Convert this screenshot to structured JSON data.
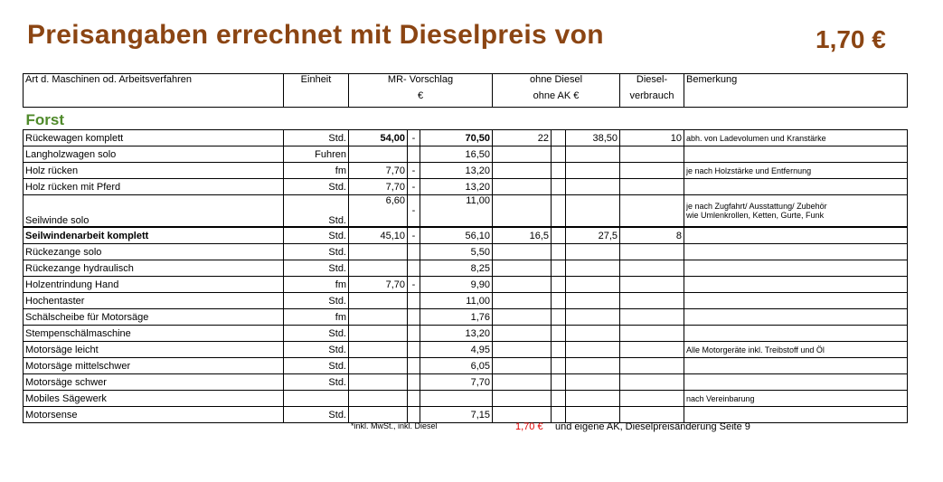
{
  "title": "Preisangaben errechnet mit Dieselpreis von",
  "diesel_price": "1,70 €",
  "header": {
    "col1": "Art d. Maschinen od. Arbeitsverfahren",
    "col2": "Einheit",
    "col3a": "MR- Vorschlag",
    "col3b": "€",
    "col4a": "ohne Diesel",
    "col4b": "ohne AK €",
    "col5a": "Diesel-",
    "col5b": "verbrauch",
    "col6": "Bemerkung"
  },
  "section": "Forst",
  "rows": [
    {
      "name": "Rückewagen komplett",
      "unit": "Std.",
      "from": "54,00",
      "dash": "-",
      "to": "70,50",
      "od1": "22",
      "od2": "38,50",
      "diesel": "10",
      "note": "abh. von Ladevolumen und Kranstärke"
    },
    {
      "name": "Langholzwagen solo",
      "unit": "Fuhren",
      "from": "",
      "dash": "",
      "to": "16,50",
      "od1": "",
      "od2": "",
      "diesel": "",
      "note": ""
    },
    {
      "name": "Holz rücken",
      "unit": "fm",
      "from": "7,70",
      "dash": "-",
      "to": "13,20",
      "od1": "",
      "od2": "",
      "diesel": "",
      "note": "je nach Holzstärke und Entfernung"
    },
    {
      "name": "Holz rücken mit Pferd",
      "unit": "Std.",
      "from": "7,70",
      "dash": "-",
      "to": "13,20",
      "od1": "",
      "od2": "",
      "diesel": "",
      "note": ""
    },
    {
      "name": "Seilwinde solo",
      "unit": "Std.",
      "from": "6,60",
      "dash": "-",
      "to": "11,00",
      "od1": "",
      "od2": "",
      "diesel": "",
      "note": "je nach Zugfahrt/ Ausstattung/ Zubehör",
      "note2": "wie Umlenkrollen, Ketten, Gurte, Funk"
    },
    {
      "name": "Seilwindenarbeit komplett",
      "unit": "Std.",
      "from": "45,10",
      "dash": "-",
      "to": "56,10",
      "od1": "16,5",
      "od2": "27,5",
      "diesel": "8",
      "note": ""
    },
    {
      "name": "Rückezange solo",
      "unit": "Std.",
      "from": "",
      "dash": "",
      "to": "5,50",
      "od1": "",
      "od2": "",
      "diesel": "",
      "note": ""
    },
    {
      "name": "Rückezange hydraulisch",
      "unit": "Std.",
      "from": "",
      "dash": "",
      "to": "8,25",
      "od1": "",
      "od2": "",
      "diesel": "",
      "note": ""
    },
    {
      "name": "Holzentrindung Hand",
      "unit": "fm",
      "from": "7,70",
      "dash": "-",
      "to": "9,90",
      "od1": "",
      "od2": "",
      "diesel": "",
      "note": ""
    },
    {
      "name": "Hochentaster",
      "unit": "Std.",
      "from": "",
      "dash": "",
      "to": "11,00",
      "od1": "",
      "od2": "",
      "diesel": "",
      "note": ""
    },
    {
      "name": "Schälscheibe für Motorsäge",
      "unit": "fm",
      "from": "",
      "dash": "",
      "to": "1,76",
      "od1": "",
      "od2": "",
      "diesel": "",
      "note": ""
    },
    {
      "name": "Stempenschälmaschine",
      "unit": "Std.",
      "from": "",
      "dash": "",
      "to": "13,20",
      "od1": "",
      "od2": "",
      "diesel": "",
      "note": ""
    },
    {
      "name": "Motorsäge leicht",
      "unit": "Std.",
      "from": "",
      "dash": "",
      "to": "4,95",
      "od1": "",
      "od2": "",
      "diesel": "",
      "note": "Alle Motorgeräte inkl. Treibstoff und Öl"
    },
    {
      "name": "Motorsäge mittelschwer",
      "unit": "Std.",
      "from": "",
      "dash": "",
      "to": "6,05",
      "od1": "",
      "od2": "",
      "diesel": "",
      "note": ""
    },
    {
      "name": "Motorsäge schwer",
      "unit": "Std.",
      "from": "",
      "dash": "",
      "to": "7,70",
      "od1": "",
      "od2": "",
      "diesel": "",
      "note": ""
    },
    {
      "name": "Mobiles Sägewerk",
      "unit": "",
      "from": "",
      "dash": "",
      "to": "",
      "od1": "",
      "od2": "",
      "diesel": "",
      "note": "nach Vereinbarung"
    },
    {
      "name": "Motorsense",
      "unit": "Std.",
      "from": "",
      "dash": "",
      "to": "7,15",
      "od1": "",
      "od2": "",
      "diesel": "",
      "note": ""
    }
  ],
  "footer": {
    "left": "*inkl. MwSt., inkl. Diesel",
    "price": "1,70 €",
    "right": "und eigene AK, Dieselpreisänderung Seite 9"
  }
}
